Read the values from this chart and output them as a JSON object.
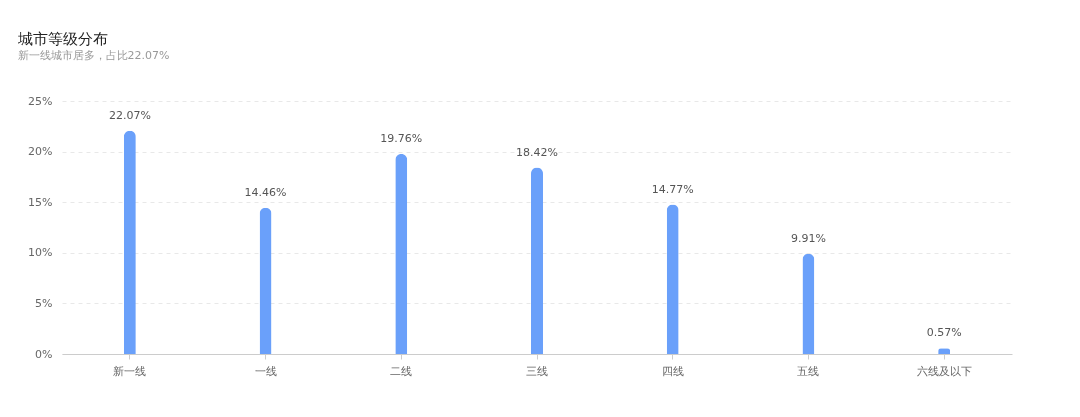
{
  "chart_data": {
    "type": "bar",
    "title": "城市等级分布",
    "subtitle": "新一线城市居多，占比22.07%",
    "categories": [
      "新一线",
      "一线",
      "二线",
      "三线",
      "四线",
      "五线",
      "六线及以下"
    ],
    "values": [
      22.07,
      14.46,
      19.76,
      18.42,
      14.77,
      9.91,
      0.57
    ],
    "value_labels": [
      "22.07%",
      "14.46%",
      "19.76%",
      "18.42%",
      "14.77%",
      "9.91%",
      "0.57%"
    ],
    "color": "#6aa0fa",
    "ylim": [
      0,
      25
    ],
    "yticks": [
      {
        "value": 0,
        "label": "0%"
      },
      {
        "value": 5,
        "label": "5%"
      },
      {
        "value": 10,
        "label": "10%"
      },
      {
        "value": 15,
        "label": "15%"
      },
      {
        "value": 20,
        "label": "20%"
      },
      {
        "value": 25,
        "label": "25%"
      }
    ],
    "grid": "y"
  }
}
